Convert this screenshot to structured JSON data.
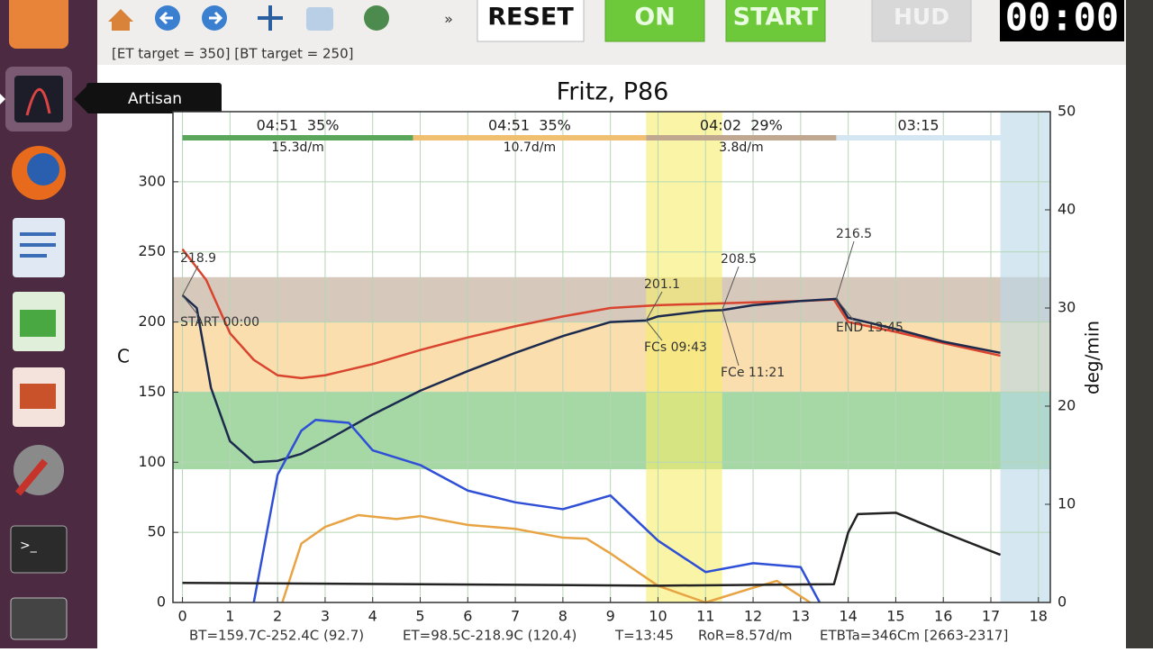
{
  "launcher": {
    "tooltip": "Artisan"
  },
  "toolbar": {
    "more": "»",
    "buttons": [
      "RESET",
      "ON",
      "START",
      "HUD"
    ],
    "timer": "00:00",
    "targets": "[ET target = 350] [BT target = 250]"
  },
  "chart_data": {
    "type": "line",
    "title": "Fritz, P86",
    "ylabel": "C",
    "y2label": "deg/min",
    "xlim": [
      -0.2,
      18.25
    ],
    "xticks": [
      0,
      1,
      2,
      3,
      4,
      5,
      6,
      7,
      8,
      9,
      10,
      11,
      12,
      13,
      14,
      15,
      16,
      17,
      18
    ],
    "ylim": [
      0,
      350
    ],
    "yticks": [
      0,
      50,
      100,
      150,
      200,
      250,
      300
    ],
    "y2lim": [
      0,
      50
    ],
    "y2ticks": [
      0,
      10,
      20,
      30,
      40,
      50
    ],
    "grid": true,
    "series": [
      {
        "color": "#d9442f",
        "x": [
          0,
          0.5,
          1,
          1.5,
          2,
          2.5,
          3,
          4,
          5,
          6,
          7,
          8,
          9,
          10,
          11,
          12,
          13,
          13.7,
          14,
          15,
          16,
          17.2
        ],
        "values": [
          252,
          230,
          192,
          173,
          162,
          160,
          162,
          170,
          180,
          189,
          197,
          204,
          210,
          212,
          213,
          214,
          215,
          216,
          200,
          193,
          185,
          176
        ]
      },
      {
        "color": "#1c2a4e",
        "x": [
          0,
          0.3,
          0.6,
          1,
          1.5,
          2,
          2.5,
          3,
          4,
          5,
          6,
          7,
          8,
          9,
          9.75,
          10,
          11,
          11.35,
          12,
          13,
          13.75,
          14,
          15,
          16,
          17.2
        ],
        "values": [
          219,
          210,
          153,
          115,
          100,
          101,
          106,
          115,
          134,
          151,
          165,
          178,
          190,
          200,
          201.1,
          204,
          208,
          208.5,
          212,
          215,
          216.5,
          203,
          195,
          186,
          178
        ]
      },
      {
        "color": "#2f4fd6",
        "axis": "y2",
        "x": [
          1.5,
          2,
          2.5,
          2.8,
          3.5,
          4,
          5,
          6,
          7,
          8,
          9,
          10,
          11,
          12,
          13,
          13.4
        ],
        "values": [
          0,
          13,
          17.5,
          18.6,
          18.3,
          15.5,
          14,
          11.4,
          10.2,
          9.5,
          10.9,
          6.3,
          3.1,
          4,
          3.6,
          0
        ]
      },
      {
        "color": "#e8a444",
        "axis": "y2",
        "x": [
          2.1,
          2.5,
          3,
          3.7,
          4.5,
          5,
          6,
          7,
          8,
          8.5,
          9,
          10,
          11,
          12,
          12.5,
          13.2
        ],
        "values": [
          0,
          6,
          7.7,
          8.9,
          8.5,
          8.8,
          7.9,
          7.5,
          6.6,
          6.5,
          5,
          1.7,
          0,
          1.5,
          2.2,
          0
        ]
      },
      {
        "color": "#222222",
        "x": [
          0,
          5,
          10,
          13.7,
          14,
          14.2,
          15,
          16,
          17.2
        ],
        "values": [
          14,
          13,
          12,
          13,
          50,
          63,
          64,
          50,
          34
        ]
      }
    ],
    "bands": [
      {
        "from": 95,
        "to": 150,
        "color": "#5cb85c"
      },
      {
        "from": 150,
        "to": 200,
        "color": "#f5c36a"
      },
      {
        "from": 200,
        "to": 232,
        "color": "#b79a85"
      }
    ],
    "vbands": [
      {
        "from": 9.75,
        "to": 11.35,
        "color": "#f7ef6a"
      },
      {
        "from": 17.2,
        "to": 18.25,
        "color": "#b9d8ea"
      }
    ],
    "phases": [
      {
        "from": 0,
        "to": 4.85,
        "color": "#5aa65a",
        "label": "04:51  35%",
        "rate": "15.3d/m"
      },
      {
        "from": 4.85,
        "to": 9.75,
        "color": "#f0c070",
        "label": "04:51  35%",
        "rate": "10.7d/m"
      },
      {
        "from": 9.75,
        "to": 13.75,
        "color": "#c0a890",
        "label": "04:02  29%",
        "rate": "3.8d/m"
      },
      {
        "from": 13.75,
        "to": 17.2,
        "color": "#d3e6f2",
        "label": "03:15"
      }
    ],
    "annotations": [
      {
        "text": "218.9",
        "x": 0,
        "y": 218.9
      },
      {
        "text": "START 00:00",
        "x": 0,
        "y": 218.9
      },
      {
        "text": "201.1",
        "x": 9.75,
        "y": 201.1
      },
      {
        "text": "FCs 09:43",
        "x": 9.75,
        "y": 201.1
      },
      {
        "text": "208.5",
        "x": 11.35,
        "y": 208.5
      },
      {
        "text": "FCe 11:21",
        "x": 11.35,
        "y": 208.5
      },
      {
        "text": "216.5",
        "x": 13.75,
        "y": 216.5
      },
      {
        "text": "END 13:45",
        "x": 13.75,
        "y": 216.5
      }
    ],
    "stats": [
      "BT=159.7C-252.4C (92.7)",
      "ET=98.5C-218.9C (120.4)",
      "T=13:45",
      "RoR=8.57d/m",
      "ETBTa=346Cm [2663-2317]"
    ]
  }
}
